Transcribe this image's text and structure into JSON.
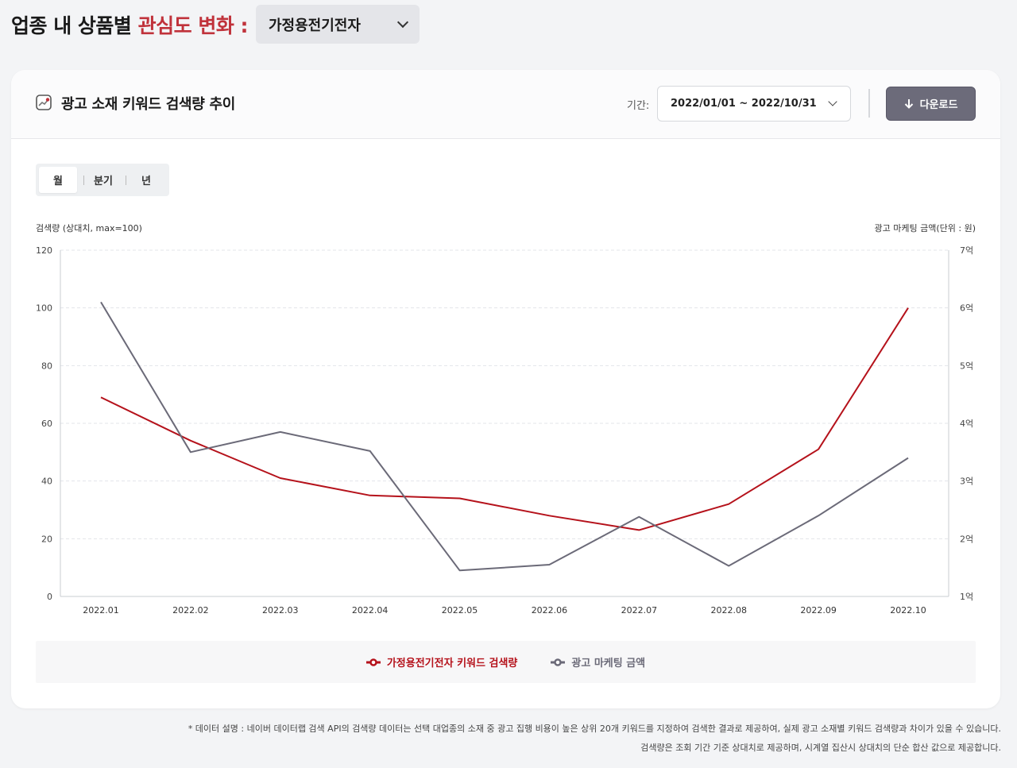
{
  "header": {
    "title_main": "업종 내 상품별 ",
    "title_accent": "관심도 변화 :",
    "industry_value": "가정용전기전자"
  },
  "card": {
    "title": "광고 소재 키워드 검색량 추이",
    "period_label": "기간:",
    "period_value": "2022/01/01 ~ 2022/10/31",
    "download_label": "다운로드",
    "toggles": [
      "월",
      "분기",
      "년"
    ],
    "active_toggle": "월"
  },
  "chart_data": {
    "type": "line",
    "x": [
      "2022.01",
      "2022.02",
      "2022.03",
      "2022.04",
      "2022.05",
      "2022.06",
      "2022.07",
      "2022.08",
      "2022.09",
      "2022.10"
    ],
    "y_left": {
      "label": "검색량 (상대치, max=100)",
      "ticks": [
        "0",
        "20",
        "40",
        "60",
        "80",
        "100",
        "120"
      ],
      "range": [
        0,
        120
      ]
    },
    "y_right": {
      "label": "광고 마케팅 금액(단위 : 원)",
      "ticks": [
        "1억",
        "2억",
        "3억",
        "4억",
        "5억",
        "6억",
        "7억"
      ],
      "range": [
        1,
        7
      ]
    },
    "grid": true,
    "legend_position": "bottom",
    "series": [
      {
        "name": "가정용전기전자 키워드 검색량",
        "axis": "left",
        "color": "#b5121b",
        "values": [
          69,
          54,
          41,
          35,
          34,
          28,
          23,
          32,
          51,
          100
        ]
      },
      {
        "name": "광고 마케팅 금액",
        "axis": "right",
        "color": "#6b6a78",
        "values": [
          6.1,
          3.5,
          3.85,
          3.52,
          1.45,
          1.55,
          2.38,
          1.53,
          2.4,
          3.4
        ]
      }
    ]
  },
  "footnotes": [
    "* 데이터 설명 : 네이버 데이터랩 검색 API의 검색량 데이터는 선택 대업종의 소재 중 광고 집행 비용이 높은 상위 20개 키워드를 지정하여 검색한 결과로 제공하여, 실제 광고 소재별 키워드 검색량과 차이가 있을 수 있습니다.",
    "검색량은 조회 기간 기준 상대치로 제공하며, 시계열 집산시 상대치의 단순 합산 값으로 제공합니다."
  ]
}
